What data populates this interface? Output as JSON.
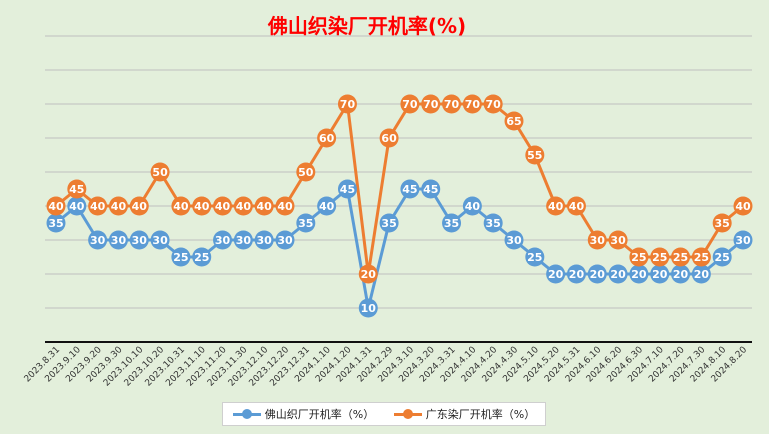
{
  "chart_data": {
    "type": "line",
    "title": "佛山织染厂开机率(%)",
    "xlabel": "",
    "ylabel": "",
    "ylim": [
      0,
      90
    ],
    "grid": true,
    "legend_position": "bottom",
    "categories": [
      "2023.8.31",
      "2023.9.10",
      "2023.9.20",
      "2023.9.30",
      "2023.10.10",
      "2023.10.20",
      "2023.10.31",
      "2023.11.10",
      "2023.11.20",
      "2023.11.30",
      "2023.12.10",
      "2023.12.20",
      "2023.12.31",
      "2024.1.10",
      "2024.1.20",
      "2024.1.31",
      "2024.2.29",
      "2024.3.10",
      "2024.3.20",
      "2024.3.31",
      "2024.4.10",
      "2024.4.20",
      "2024.4.30",
      "2024.5.10",
      "2024.5.20",
      "2024.5.31",
      "2024.6.10",
      "2024.6.20",
      "2024.6.30",
      "2024.7.10",
      "2024.7.20",
      "2024.7.30",
      "2024.8.10",
      "2024.8.20"
    ],
    "series": [
      {
        "name": "佛山织厂开机率（%）",
        "color": "#5b9bd5",
        "values": [
          35,
          40,
          30,
          30,
          30,
          30,
          25,
          25,
          30,
          30,
          30,
          30,
          35,
          40,
          45,
          10,
          35,
          45,
          45,
          35,
          40,
          35,
          30,
          25,
          20,
          20,
          20,
          20,
          20,
          20,
          20,
          20,
          25,
          30
        ]
      },
      {
        "name": "广东染厂开机率（%）",
        "color": "#ed7d31",
        "values": [
          40,
          45,
          40,
          40,
          40,
          50,
          40,
          40,
          40,
          40,
          40,
          40,
          50,
          60,
          70,
          20,
          60,
          70,
          70,
          70,
          70,
          70,
          65,
          55,
          40,
          40,
          30,
          30,
          25,
          25,
          25,
          25,
          35,
          40
        ]
      }
    ]
  }
}
